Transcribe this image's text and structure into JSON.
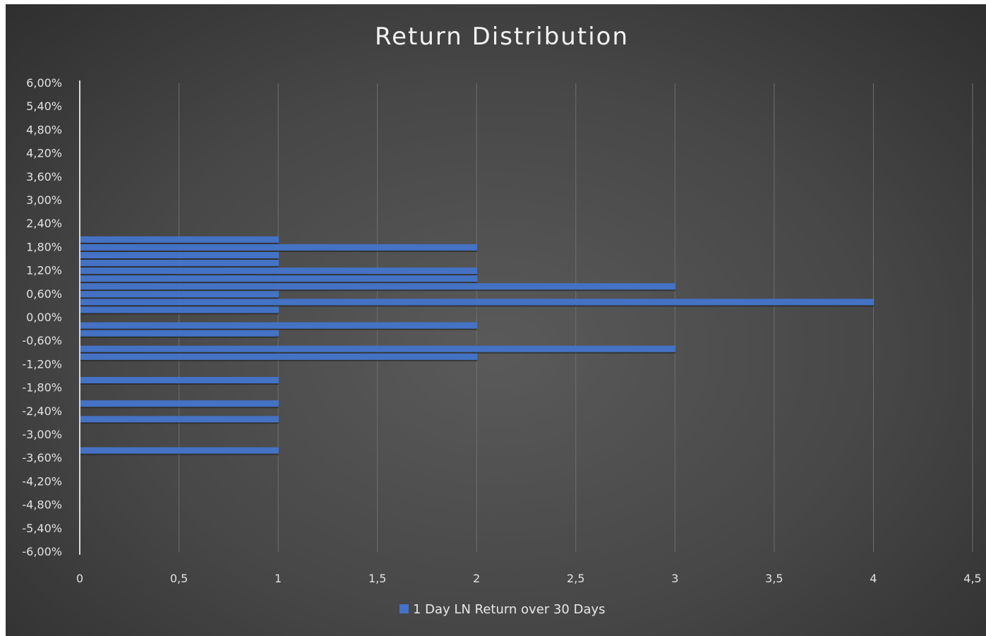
{
  "chart_data": {
    "type": "bar",
    "orientation": "horizontal",
    "title": "Return Distribution",
    "xlabel": "",
    "ylabel": "",
    "xlim": [
      0,
      4.5
    ],
    "ylim": [
      -0.06,
      0.06
    ],
    "x_ticks": [
      "0",
      "0,5",
      "1",
      "1,5",
      "2",
      "2,5",
      "3",
      "3,5",
      "4",
      "4,5"
    ],
    "y_ticks": [
      "6,00%",
      "5,40%",
      "4,80%",
      "4,20%",
      "3,60%",
      "3,00%",
      "2,40%",
      "1,80%",
      "1,20%",
      "0,60%",
      "0,00%",
      "-0,60%",
      "-1,20%",
      "-1,80%",
      "-2,40%",
      "-3,00%",
      "-3,60%",
      "-4,20%",
      "-4,80%",
      "-5,40%",
      "-6,00%"
    ],
    "grid": "vertical",
    "legend": "bottom-center",
    "series": [
      {
        "name": "1 Day LN Return over 30 Days",
        "color": "#4472c4",
        "points": [
          {
            "y": 0.02,
            "x": 1
          },
          {
            "y": 0.018,
            "x": 2
          },
          {
            "y": 0.016,
            "x": 1
          },
          {
            "y": 0.014,
            "x": 1
          },
          {
            "y": 0.012,
            "x": 2
          },
          {
            "y": 0.01,
            "x": 2
          },
          {
            "y": 0.008,
            "x": 3
          },
          {
            "y": 0.006,
            "x": 1
          },
          {
            "y": 0.004,
            "x": 4
          },
          {
            "y": 0.002,
            "x": 1
          },
          {
            "y": -0.002,
            "x": 2
          },
          {
            "y": -0.004,
            "x": 1
          },
          {
            "y": -0.008,
            "x": 3
          },
          {
            "y": -0.01,
            "x": 2
          },
          {
            "y": -0.016,
            "x": 1
          },
          {
            "y": -0.022,
            "x": 1
          },
          {
            "y": -0.026,
            "x": 1
          },
          {
            "y": -0.034,
            "x": 1
          }
        ]
      }
    ]
  }
}
